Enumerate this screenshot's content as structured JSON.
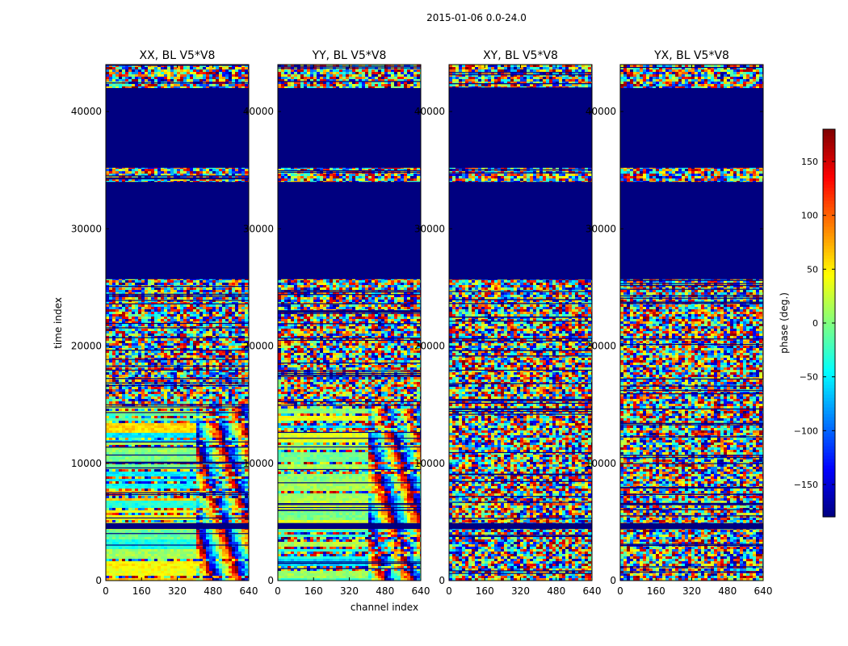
{
  "chart_data": {
    "type": "heatmap",
    "suptitle": "2015-01-06 0.0-24.0",
    "xlabel": "channel index",
    "ylabel": "time index",
    "xlim": [
      0,
      640
    ],
    "ylim": [
      0,
      44000
    ],
    "xticks": [
      0,
      160,
      320,
      480,
      640
    ],
    "yticks": [
      0,
      10000,
      20000,
      30000,
      40000
    ],
    "colormap": "jet",
    "colorbar": {
      "label": "phase (deg.)",
      "range": [
        -180,
        180
      ],
      "ticks": [
        150,
        100,
        50,
        0,
        -50,
        -100,
        -150
      ],
      "tick_labels": [
        "150",
        "100",
        "50",
        "0",
        "−50",
        "−100",
        "−150"
      ]
    },
    "flagged_time_ranges": [
      [
        4400,
        4900
      ],
      [
        25700,
        34000
      ],
      [
        35200,
        42000
      ]
    ],
    "flag_value_deg": -180,
    "panels": [
      {
        "title": "XX, BL V5*V8",
        "product": "XX"
      },
      {
        "title": "YY, BL V5*V8",
        "product": "YY"
      },
      {
        "title": "XY, BL V5*V8",
        "product": "XY"
      },
      {
        "title": "YX, BL V5*V8",
        "product": "YX"
      }
    ]
  }
}
